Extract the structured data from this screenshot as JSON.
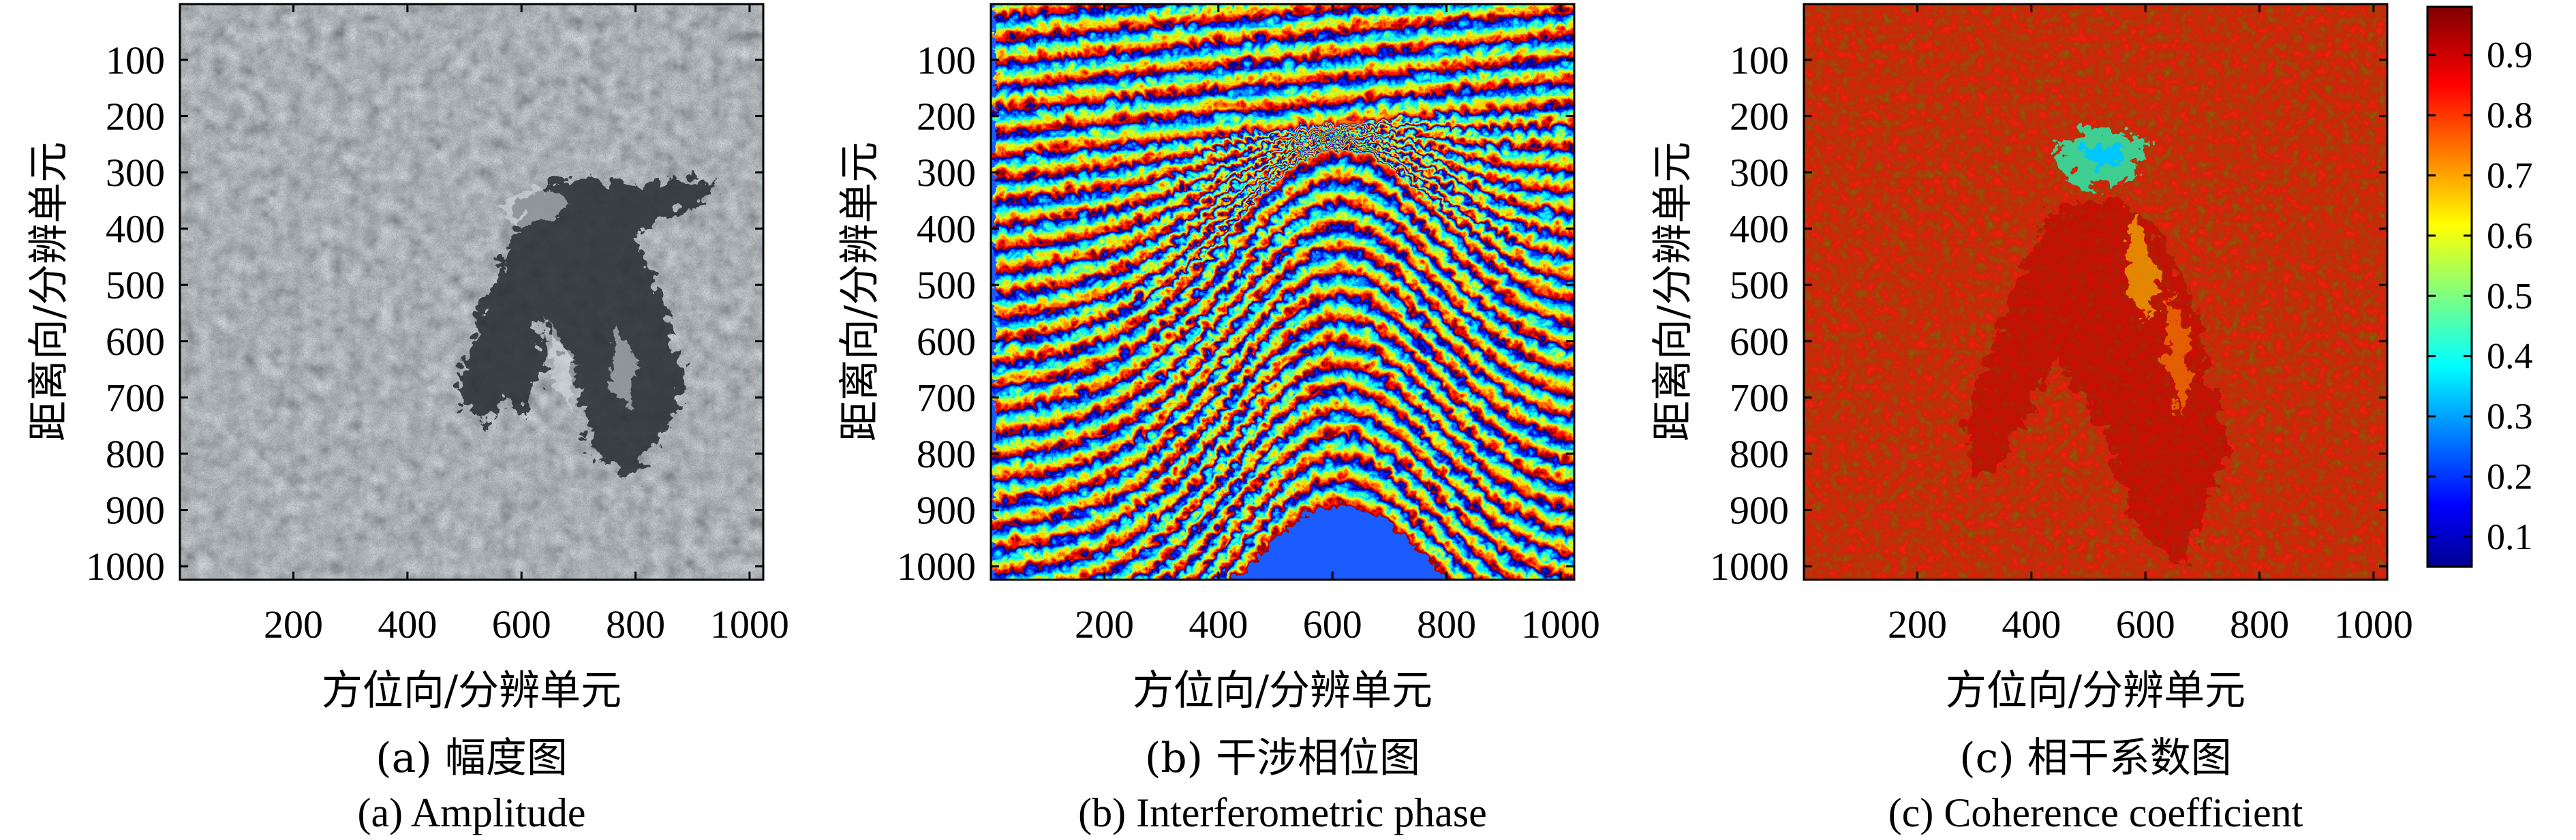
{
  "chart_data": [
    {
      "type": "heatmap",
      "colormap": "gray",
      "xlabel": "方位向/分辨单元",
      "ylabel": "距离向/分辨单元",
      "xlim": [
        1,
        1024
      ],
      "ylim": [
        1,
        1024
      ],
      "xticks": [
        200,
        400,
        600,
        800,
        1000
      ],
      "yticks": [
        100,
        200,
        300,
        400,
        500,
        600,
        700,
        800,
        900,
        1000
      ],
      "caption_cn": "(a) 幅度图",
      "caption_en": "(a) Amplitude"
    },
    {
      "type": "heatmap",
      "colormap": "jet",
      "xlabel": "方位向/分辨单元",
      "ylabel": "距离向/分辨单元",
      "xlim": [
        1,
        1024
      ],
      "ylim": [
        1,
        1024
      ],
      "xticks": [
        200,
        400,
        600,
        800,
        1000
      ],
      "yticks": [
        100,
        200,
        300,
        400,
        500,
        600,
        700,
        800,
        900,
        1000
      ],
      "caption_cn": "(b) 干涉相位图",
      "caption_en": "(b) Interferometric phase"
    },
    {
      "type": "heatmap",
      "colormap": "jet",
      "xlabel": "方位向/分辨单元",
      "ylabel": "距离向/分辨单元",
      "xlim": [
        1,
        1024
      ],
      "ylim": [
        1,
        1024
      ],
      "xticks": [
        200,
        400,
        600,
        800,
        1000
      ],
      "yticks": [
        100,
        200,
        300,
        400,
        500,
        600,
        700,
        800,
        900,
        1000
      ],
      "caption_cn": "(c) 相干系数图",
      "caption_en": "(c) Coherence coefficient",
      "colorbar": {
        "range": [
          0.05,
          0.98
        ],
        "ticks": [
          "0.1",
          "0.2",
          "0.3",
          "0.4",
          "0.5",
          "0.6",
          "0.7",
          "0.8",
          "0.9"
        ]
      }
    }
  ]
}
